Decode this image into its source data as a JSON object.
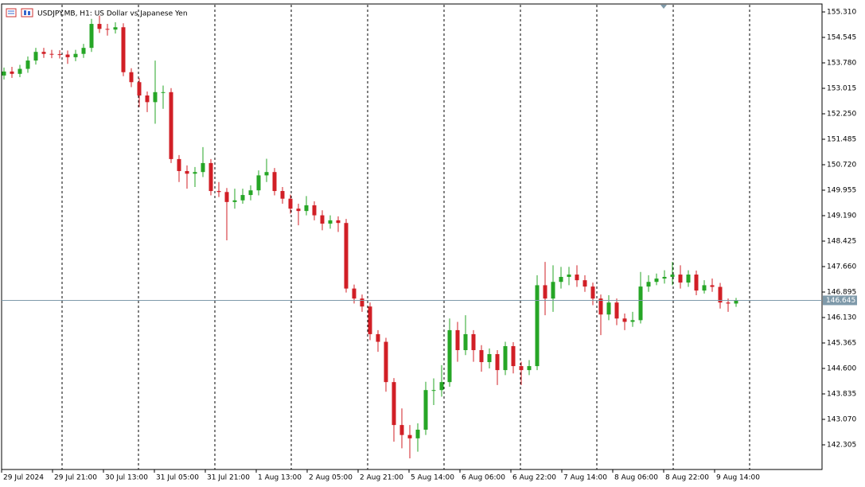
{
  "chart_data": {
    "type": "candlestick",
    "title": "USDJPY.MB, H1:  US Dollar vs Japanese Yen",
    "up_color": "#26a626",
    "down_color": "#d11f26",
    "last_color": "#7f9aaa",
    "ylim": [
      141.564,
      155.549
    ],
    "yticks": [
      {
        "value": 155.31,
        "label": "155.310"
      },
      {
        "value": 154.545,
        "label": "154.545"
      },
      {
        "value": 153.78,
        "label": "153.780"
      },
      {
        "value": 153.015,
        "label": "153.015"
      },
      {
        "value": 152.25,
        "label": "152.250"
      },
      {
        "value": 151.485,
        "label": "151.485"
      },
      {
        "value": 150.72,
        "label": "150.720"
      },
      {
        "value": 149.955,
        "label": "149.955"
      },
      {
        "value": 149.19,
        "label": "149.190"
      },
      {
        "value": 148.425,
        "label": "148.425"
      },
      {
        "value": 147.66,
        "label": "147.660"
      },
      {
        "value": 146.895,
        "label": "146.895"
      },
      {
        "value": 146.13,
        "label": "146.130"
      },
      {
        "value": 145.365,
        "label": "145.365"
      },
      {
        "value": 144.6,
        "label": "144.600"
      },
      {
        "value": 143.835,
        "label": "143.835"
      },
      {
        "value": 143.07,
        "label": "143.070"
      },
      {
        "value": 142.305,
        "label": "142.305"
      }
    ],
    "last_price": 146.645,
    "xlabels": [
      "29 Jul 2024",
      "29 Jul 21:00",
      "30 Jul 13:00",
      "31 Jul 05:00",
      "31 Jul 21:00",
      "1 Aug 13:00",
      "2 Aug 05:00",
      "2 Aug 21:00",
      "5 Aug 14:00",
      "6 Aug 06:00",
      "6 Aug 22:00",
      "7 Aug 14:00",
      "8 Aug 06:00",
      "8 Aug 22:00",
      "9 Aug 14:00"
    ],
    "open": [
      153.4,
      153.52,
      153.45,
      153.6,
      153.85,
      154.11,
      154.05,
      154.04,
      154.03,
      153.95,
      154.05,
      154.23,
      154.95,
      154.8,
      154.78,
      154.85,
      153.5,
      153.2,
      152.8,
      152.6,
      152.9,
      152.9,
      150.89,
      150.53,
      150.45,
      150.5,
      150.77,
      149.93,
      149.9,
      149.6,
      149.65,
      149.81,
      149.95,
      150.4,
      150.5,
      149.93,
      149.7,
      149.4,
      149.33,
      149.5,
      149.2,
      148.95,
      149.05,
      148.97,
      147.0,
      146.7,
      146.46,
      145.63,
      145.4,
      144.19,
      142.9,
      142.6,
      142.5,
      142.76,
      143.95,
      143.95,
      144.19,
      145.75,
      145.15,
      145.63,
      145.15,
      144.79,
      145.03,
      144.55,
      145.27,
      144.67,
      144.55,
      144.67,
      147.1,
      146.7,
      147.2,
      147.35,
      147.42,
      147.25,
      147.06,
      146.7,
      146.22,
      146.58,
      146.1,
      146.0,
      146.05,
      147.06,
      147.2,
      147.3,
      147.35,
      147.42,
      147.18,
      147.42,
      146.94,
      147.1,
      147.05,
      146.58,
      146.55
    ],
    "high": [
      153.64,
      153.66,
      153.72,
      153.97,
      154.23,
      154.23,
      154.17,
      154.16,
      154.15,
      154.17,
      154.35,
      155.1,
      155.2,
      154.95,
      155.0,
      154.97,
      153.62,
      153.32,
      152.92,
      153.85,
      153.1,
      153.02,
      151.01,
      150.7,
      150.65,
      151.25,
      150.89,
      150.2,
      150.02,
      150.0,
      150.0,
      150.1,
      150.55,
      150.9,
      150.62,
      150.05,
      149.82,
      149.55,
      149.78,
      149.62,
      149.35,
      149.2,
      149.17,
      149.09,
      147.12,
      146.82,
      146.58,
      145.75,
      145.52,
      144.31,
      143.4,
      142.9,
      142.95,
      144.2,
      144.3,
      144.7,
      146.1,
      146.0,
      146.2,
      145.75,
      145.3,
      145.2,
      145.15,
      145.4,
      145.39,
      144.8,
      144.85,
      147.4,
      147.8,
      147.7,
      147.65,
      147.65,
      147.7,
      147.4,
      147.18,
      146.82,
      146.8,
      146.7,
      146.25,
      146.3,
      147.5,
      147.4,
      147.45,
      147.55,
      147.8,
      147.7,
      147.55,
      147.54,
      147.25,
      147.3,
      147.17,
      146.7,
      146.72
    ],
    "low": [
      153.28,
      153.33,
      153.35,
      153.48,
      153.73,
      153.93,
      153.92,
      153.91,
      153.75,
      153.83,
      153.93,
      154.11,
      154.68,
      154.6,
      154.66,
      153.38,
      153.05,
      152.45,
      152.3,
      151.95,
      152.4,
      150.77,
      150.2,
      150.0,
      150.05,
      150.35,
      149.8,
      149.75,
      148.45,
      149.4,
      149.55,
      149.65,
      149.8,
      150.2,
      149.8,
      149.55,
      149.25,
      148.9,
      149.2,
      149.05,
      148.75,
      148.8,
      148.7,
      146.88,
      146.55,
      146.3,
      145.45,
      145.1,
      143.9,
      142.4,
      142.2,
      141.9,
      142.1,
      142.6,
      143.5,
      143.75,
      144.05,
      144.8,
      145.0,
      144.8,
      144.5,
      144.6,
      144.1,
      144.4,
      144.45,
      144.1,
      144.4,
      144.55,
      146.2,
      146.3,
      147.0,
      147.1,
      147.05,
      146.9,
      146.5,
      145.6,
      146.05,
      145.9,
      145.75,
      145.85,
      145.95,
      146.9,
      147.1,
      147.15,
      147.1,
      147.0,
      147.05,
      146.8,
      146.85,
      146.9,
      146.4,
      146.3,
      146.45
    ],
    "close": [
      153.52,
      153.45,
      153.6,
      153.85,
      154.11,
      154.05,
      154.04,
      154.03,
      153.95,
      154.05,
      154.23,
      154.95,
      154.8,
      154.78,
      154.85,
      153.5,
      153.2,
      152.8,
      152.6,
      152.9,
      152.9,
      150.89,
      150.53,
      150.45,
      150.5,
      150.77,
      149.93,
      149.9,
      149.6,
      149.65,
      149.81,
      149.95,
      150.4,
      150.5,
      149.93,
      149.7,
      149.4,
      149.33,
      149.5,
      149.2,
      148.95,
      149.05,
      148.97,
      147.0,
      146.7,
      146.46,
      145.63,
      145.4,
      144.19,
      142.9,
      142.6,
      142.5,
      142.76,
      143.95,
      143.95,
      144.19,
      145.75,
      145.15,
      145.63,
      145.15,
      144.79,
      145.03,
      144.55,
      145.27,
      144.67,
      144.55,
      144.67,
      147.1,
      146.7,
      147.2,
      147.35,
      147.42,
      147.25,
      147.06,
      146.7,
      146.22,
      146.58,
      146.1,
      146.0,
      146.05,
      147.06,
      147.2,
      147.3,
      147.35,
      147.42,
      147.18,
      147.42,
      146.94,
      147.1,
      147.05,
      146.58,
      146.55,
      146.645
    ]
  }
}
